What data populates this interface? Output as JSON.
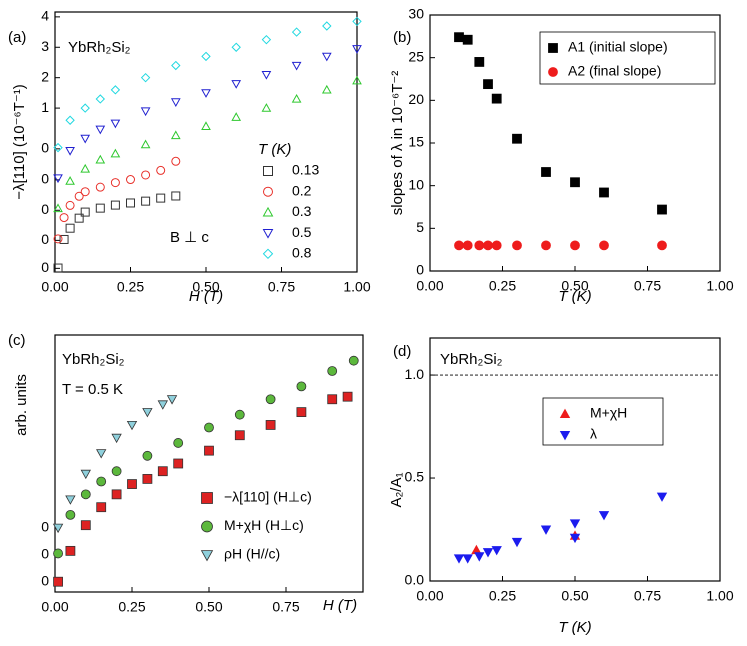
{
  "chart_data": [
    {
      "type": "scatter",
      "panel_label": "(a)",
      "x_label": "H (T)",
      "y_label": "−λ[110] (10⁻⁶T⁻¹)",
      "annotations": [
        "YbRh₂Si₂",
        "B ⊥ c"
      ],
      "legend_title": "T (K)",
      "xlim": [
        0,
        1
      ],
      "xticks": [
        {
          "value": 0,
          "label": "0.00"
        },
        {
          "value": 0.25,
          "label": "0.25"
        },
        {
          "value": 0.5,
          "label": "0.50"
        },
        {
          "value": 0.75,
          "label": "0.75"
        },
        {
          "value": 1,
          "label": "1.00"
        }
      ],
      "ylim": [
        -4.39,
        4.16
      ],
      "yticks": [
        {
          "value": -4.27,
          "label": "0"
        },
        {
          "value": -3.35,
          "label": "0"
        },
        {
          "value": -2.36,
          "label": "0"
        },
        {
          "value": -1.36,
          "label": "0"
        },
        {
          "value": -0.34,
          "label": "0"
        },
        1,
        2,
        3,
        4
      ],
      "series": [
        {
          "name": "0.13",
          "color": "#333333",
          "marker": "square",
          "filled": false,
          "x": [
            0.01,
            0.03,
            0.05,
            0.08,
            0.1,
            0.15,
            0.2,
            0.25,
            0.3,
            0.35,
            0.4
          ],
          "values": [
            -4.26,
            -3.32,
            -2.95,
            -2.62,
            -2.42,
            -2.29,
            -2.19,
            -2.12,
            -2.06,
            -1.96,
            -1.89
          ]
        },
        {
          "name": "0.2",
          "color": "#e8302a",
          "marker": "circle",
          "filled": false,
          "x": [
            0.01,
            0.03,
            0.05,
            0.08,
            0.1,
            0.15,
            0.2,
            0.25,
            0.3,
            0.35,
            0.4
          ],
          "values": [
            -3.3,
            -2.6,
            -2.2,
            -1.9,
            -1.75,
            -1.6,
            -1.45,
            -1.35,
            -1.2,
            -1.05,
            -0.75
          ]
        },
        {
          "name": "0.3",
          "color": "#2ec82e",
          "marker": "triangle-up",
          "filled": false,
          "x": [
            0.01,
            0.05,
            0.1,
            0.15,
            0.2,
            0.3,
            0.4,
            0.5,
            0.6,
            0.7,
            0.8,
            0.9,
            1.0
          ],
          "values": [
            -2.3,
            -1.4,
            -1.0,
            -0.7,
            -0.5,
            -0.2,
            0.1,
            0.4,
            0.7,
            1.0,
            1.3,
            1.6,
            1.9
          ]
        },
        {
          "name": "0.5",
          "color": "#2020d0",
          "marker": "triangle-down",
          "filled": false,
          "x": [
            0.01,
            0.05,
            0.1,
            0.15,
            0.2,
            0.3,
            0.4,
            0.5,
            0.6,
            0.7,
            0.8,
            0.9,
            1.0
          ],
          "values": [
            -1.3,
            -0.4,
            0,
            0.3,
            0.5,
            0.9,
            1.2,
            1.5,
            1.8,
            2.1,
            2.4,
            2.7,
            2.95
          ]
        },
        {
          "name": "0.8",
          "color": "#20d8e0",
          "marker": "diamond",
          "filled": false,
          "x": [
            0.01,
            0.05,
            0.1,
            0.15,
            0.2,
            0.3,
            0.4,
            0.5,
            0.6,
            0.7,
            0.8,
            0.9,
            1.0
          ],
          "values": [
            -0.3,
            0.6,
            1.0,
            1.3,
            1.6,
            2.0,
            2.4,
            2.7,
            3.0,
            3.25,
            3.5,
            3.7,
            3.85
          ]
        }
      ]
    },
    {
      "type": "scatter",
      "panel_label": "(b)",
      "x_label": "T (K)",
      "y_label": "slopes of λ in 10⁻⁶T⁻²",
      "annotations": [],
      "xlim": [
        0,
        1
      ],
      "xticks": [
        {
          "value": 0,
          "label": "0.00"
        },
        {
          "value": 0.25,
          "label": "0.25"
        },
        {
          "value": 0.5,
          "label": "0.50"
        },
        {
          "value": 0.75,
          "label": "0.75"
        },
        {
          "value": 1,
          "label": "1.00"
        }
      ],
      "ylim": [
        0,
        30
      ],
      "yticks": [
        0,
        5,
        10,
        15,
        20,
        25,
        30
      ],
      "series": [
        {
          "name": "A1 (initial slope)",
          "color": "#000000",
          "marker": "square",
          "filled": true,
          "x": [
            0.1,
            0.13,
            0.17,
            0.2,
            0.23,
            0.3,
            0.4,
            0.5,
            0.6,
            0.8
          ],
          "values": [
            27.4,
            27.1,
            24.5,
            21.9,
            20.2,
            15.5,
            11.6,
            10.4,
            9.2,
            7.2
          ]
        },
        {
          "name": "A2 (final slope)",
          "color": "#ee1c1c",
          "marker": "circle",
          "filled": true,
          "x": [
            0.1,
            0.13,
            0.17,
            0.2,
            0.23,
            0.3,
            0.4,
            0.5,
            0.6,
            0.8
          ],
          "values": [
            3,
            3,
            3,
            3,
            3,
            3,
            3,
            3,
            3,
            3
          ]
        }
      ]
    },
    {
      "type": "scatter",
      "panel_label": "(c)",
      "x_label": "H (T)",
      "y_label": "arb. units",
      "annotations": [
        "YbRh₂Si₂",
        "T = 0.5 K"
      ],
      "xlim": [
        0,
        1
      ],
      "xticks": [
        {
          "value": 0,
          "label": "0.00"
        },
        {
          "value": 0.25,
          "label": "0.25"
        },
        {
          "value": 0.5,
          "label": "0.50"
        },
        {
          "value": 0.75,
          "label": "0.75"
        }
      ],
      "ylim": [
        0,
        10
      ],
      "yticks": [
        {
          "value": 0.39,
          "label": "0"
        },
        {
          "value": 1.44,
          "label": "0"
        },
        {
          "value": 2.49,
          "label": "0"
        }
      ],
      "series": [
        {
          "name": "−λ[110] (H⊥c)",
          "color": "#dd2222",
          "marker": "square",
          "filled": true,
          "x": [
            0.01,
            0.05,
            0.1,
            0.15,
            0.2,
            0.25,
            0.3,
            0.35,
            0.4,
            0.5,
            0.6,
            0.7,
            0.8,
            0.9,
            0.95
          ],
          "values": [
            0.4,
            1.6,
            2.6,
            3.3,
            3.8,
            4.2,
            4.4,
            4.7,
            5.0,
            5.5,
            6.1,
            6.5,
            7.0,
            7.5,
            7.6
          ]
        },
        {
          "name": "M+χH (H⊥c)",
          "color": "#5cb83c",
          "marker": "circle",
          "filled": true,
          "x": [
            0.01,
            0.05,
            0.1,
            0.15,
            0.2,
            0.3,
            0.4,
            0.5,
            0.6,
            0.7,
            0.8,
            0.9,
            0.97
          ],
          "values": [
            1.5,
            3.0,
            3.8,
            4.3,
            4.7,
            5.3,
            5.8,
            6.4,
            6.9,
            7.5,
            8.0,
            8.6,
            9.0
          ]
        },
        {
          "name": "ρH (H//c)",
          "color": "#8fd0dc",
          "marker": "triangle-down",
          "filled": true,
          "x": [
            0.01,
            0.05,
            0.1,
            0.15,
            0.2,
            0.25,
            0.3,
            0.35,
            0.38
          ],
          "values": [
            2.5,
            3.6,
            4.6,
            5.4,
            6.0,
            6.5,
            7.0,
            7.3,
            7.5
          ]
        }
      ]
    },
    {
      "type": "scatter",
      "panel_label": "(d)",
      "x_label": "T (K)",
      "y_label": "A₂/A₁",
      "annotations": [
        "YbRh₂Si₂"
      ],
      "reference_line": 1,
      "xlim": [
        0,
        1
      ],
      "xticks": [
        {
          "value": 0,
          "label": "0.00"
        },
        {
          "value": 0.25,
          "label": "0.25"
        },
        {
          "value": 0.5,
          "label": "0.50"
        },
        {
          "value": 0.75,
          "label": "0.75"
        },
        {
          "value": 1,
          "label": "1.00"
        }
      ],
      "ylim": [
        0,
        1.18
      ],
      "yticks": [
        {
          "value": 0,
          "label": "0.0"
        },
        0.5,
        {
          "value": 1,
          "label": "1.0"
        }
      ],
      "series": [
        {
          "name": "M+χH",
          "color": "#ee1c1c",
          "marker": "triangle-up",
          "filled": true,
          "x": [
            0.16,
            0.5
          ],
          "values": [
            0.15,
            0.22
          ]
        },
        {
          "name": "λ",
          "color": "#1c1cee",
          "marker": "triangle-down",
          "filled": true,
          "x": [
            0.1,
            0.13,
            0.17,
            0.2,
            0.23,
            0.3,
            0.4,
            0.5,
            0.5,
            0.6,
            0.8
          ],
          "values": [
            0.11,
            0.11,
            0.12,
            0.14,
            0.15,
            0.19,
            0.25,
            0.28,
            0.21,
            0.32,
            0.41
          ]
        }
      ]
    }
  ]
}
